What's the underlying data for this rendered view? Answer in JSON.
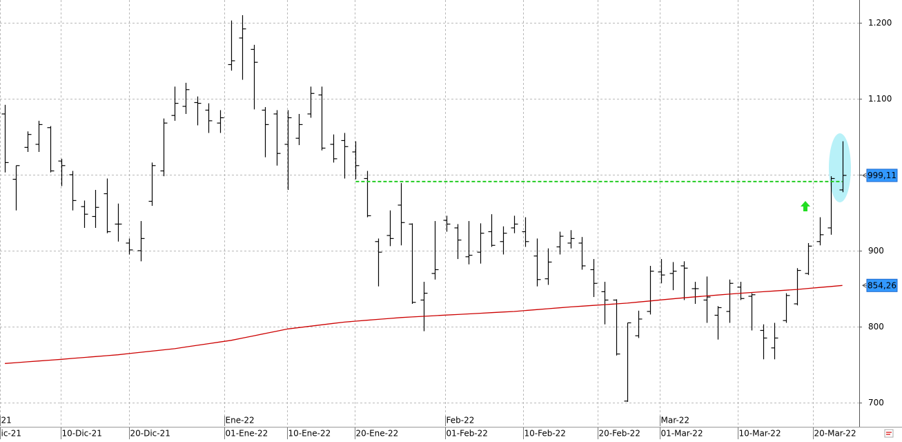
{
  "chart_data": {
    "type": "ohlc",
    "categories": [
      null,
      null,
      null,
      null,
      null,
      null,
      null,
      null,
      null,
      null,
      null,
      null,
      null,
      null,
      null,
      null,
      null,
      null,
      null,
      null,
      null,
      null,
      null,
      null,
      null,
      null,
      null,
      null,
      null,
      null,
      null,
      null,
      null,
      null,
      null,
      null,
      null,
      null,
      null,
      null,
      null,
      null,
      null,
      null,
      null,
      null,
      null,
      null,
      null,
      null,
      null,
      null,
      null,
      null,
      null,
      null,
      null,
      null,
      null,
      null,
      null,
      null,
      null,
      null,
      null,
      null,
      null,
      null,
      null,
      null,
      null,
      null,
      null,
      null,
      null
    ],
    "open": [
      1080,
      994,
      1036,
      1040,
      1062,
      1018,
      1000,
      958,
      945,
      975,
      935,
      910,
      900,
      965,
      1005,
      1078,
      1090,
      1095,
      1085,
      1068,
      1145,
      1180,
      1165,
      1085,
      1080,
      1040,
      1048,
      1080,
      1105,
      1040,
      1045,
      1030,
      995,
      912,
      920,
      960,
      935,
      835,
      870,
      940,
      930,
      892,
      898,
      925,
      912,
      930,
      925,
      893,
      863,
      905,
      910,
      910,
      875,
      846,
      835,
      702,
      788,
      820,
      872,
      870,
      880,
      850,
      835,
      815,
      820,
      852,
      840,
      795,
      772,
      808,
      830,
      870,
      912,
      930,
      980
    ],
    "high": [
      1092,
      1012,
      1057,
      1071,
      1064,
      1021,
      1005,
      966,
      980,
      995,
      962,
      916,
      939,
      1016,
      1074,
      1116,
      1121,
      1103,
      1094,
      1085,
      1203,
      1210,
      1171,
      1089,
      1085,
      1085,
      1080,
      1116,
      1116,
      1053,
      1055,
      1044,
      1005,
      916,
      953,
      989,
      936,
      859,
      939,
      946,
      935,
      939,
      936,
      948,
      932,
      946,
      944,
      916,
      903,
      925,
      927,
      918,
      889,
      859,
      836,
      805,
      821,
      880,
      889,
      885,
      886,
      859,
      866,
      827,
      862,
      859,
      844,
      803,
      805,
      844,
      877,
      910,
      944,
      998,
      1044
    ],
    "low": [
      1003,
      953,
      1030,
      1030,
      1003,
      985,
      953,
      930,
      930,
      923,
      912,
      895,
      886,
      959,
      998,
      1071,
      1080,
      1065,
      1055,
      1055,
      1137,
      1125,
      1086,
      1023,
      1012,
      980,
      1039,
      1075,
      1032,
      1016,
      995,
      994,
      944,
      853,
      906,
      907,
      830,
      794,
      862,
      925,
      889,
      882,
      883,
      905,
      895,
      923,
      905,
      853,
      855,
      895,
      903,
      875,
      839,
      803,
      762,
      701,
      785,
      816,
      857,
      848,
      835,
      830,
      805,
      783,
      805,
      835,
      795,
      757,
      757,
      805,
      828,
      868,
      907,
      921,
      977
    ],
    "close": [
      1016,
      1012,
      1053,
      1066,
      1005,
      1012,
      966,
      948,
      957,
      925,
      935,
      901,
      916,
      1012,
      1068,
      1094,
      1112,
      1094,
      1071,
      1075,
      1150,
      1192,
      1148,
      1066,
      1028,
      1075,
      1066,
      1107,
      1035,
      1021,
      1037,
      1012,
      946,
      898,
      916,
      937,
      832,
      844,
      875,
      935,
      914,
      894,
      923,
      907,
      923,
      935,
      912,
      862,
      885,
      919,
      916,
      880,
      857,
      835,
      764,
      805,
      810,
      873,
      868,
      873,
      877,
      850,
      839,
      825,
      857,
      837,
      842,
      785,
      785,
      841,
      874,
      906,
      921,
      995,
      999.11
    ],
    "color": "#000000",
    "moving_average": {
      "color": "#cc0000",
      "values": [
        751.5,
        752.6,
        753.7,
        754.8,
        755.9,
        757,
        758.2,
        759.4,
        760.6,
        761.8,
        763,
        764.6,
        766.2,
        767.8,
        769.4,
        771,
        773.2,
        775.4,
        777.6,
        779.8,
        782,
        785,
        788,
        791,
        794,
        797,
        798.8,
        800.6,
        802.4,
        804.2,
        806,
        807.2,
        808.4,
        809.6,
        810.8,
        812,
        812.8,
        813.6,
        814.4,
        815.2,
        816,
        816.8,
        817.6,
        818.4,
        819.2,
        820,
        821.2,
        822.4,
        823.6,
        824.8,
        826,
        827,
        828,
        829,
        830,
        831,
        832.4,
        833.8,
        835.2,
        836.6,
        838,
        839.2,
        840.4,
        841.6,
        842.8,
        844,
        845,
        846,
        847,
        848,
        849,
        850.3,
        851.6,
        852.9,
        854.26
      ]
    },
    "support_line": {
      "value": 991,
      "x_range": [
        31,
        74
      ],
      "color": "#22cc22"
    },
    "price_labels": [
      {
        "value": 999.11,
        "label": "999,11"
      },
      {
        "value": 854.26,
        "label": "854,26"
      }
    ],
    "price_label_color": "#3399ff",
    "ylim": [
      684.5,
      1230
    ],
    "yticks": [
      700,
      800,
      900,
      {
        "value": 1000,
        "label": "1.000"
      },
      {
        "value": 1100,
        "label": "1.100"
      },
      {
        "value": 1200,
        "label": "1.200"
      }
    ],
    "xlim": [
      -0.43,
      75.49
    ],
    "xticks": [
      {
        "value": -0.43,
        "label": "ic-21"
      },
      {
        "value": 4.94,
        "label": "10-Dic-21"
      },
      {
        "value": 10.98,
        "label": "20-Dic-21"
      },
      {
        "value": 19.4,
        "label": "01-Ene-22"
      },
      {
        "value": 24.94,
        "label": "10-Ene-22"
      },
      {
        "value": 30.91,
        "label": "20-Ene-22"
      },
      {
        "value": 38.9,
        "label": "01-Feb-22"
      },
      {
        "value": 45.79,
        "label": "10-Feb-22"
      },
      {
        "value": 52.38,
        "label": "20-Feb-22"
      },
      {
        "value": 57.87,
        "label": "01-Mar-22"
      },
      {
        "value": 64.76,
        "label": "10-Mar-22"
      },
      {
        "value": 71.4,
        "label": "20-Mar-22"
      }
    ],
    "month_ticks": [
      {
        "value": -0.43,
        "label": "21"
      },
      {
        "value": 19.4,
        "label": "Ene-22"
      },
      {
        "value": 38.9,
        "label": "Feb-22"
      },
      {
        "value": 57.87,
        "label": "Mar-22"
      }
    ],
    "grid": true
  }
}
